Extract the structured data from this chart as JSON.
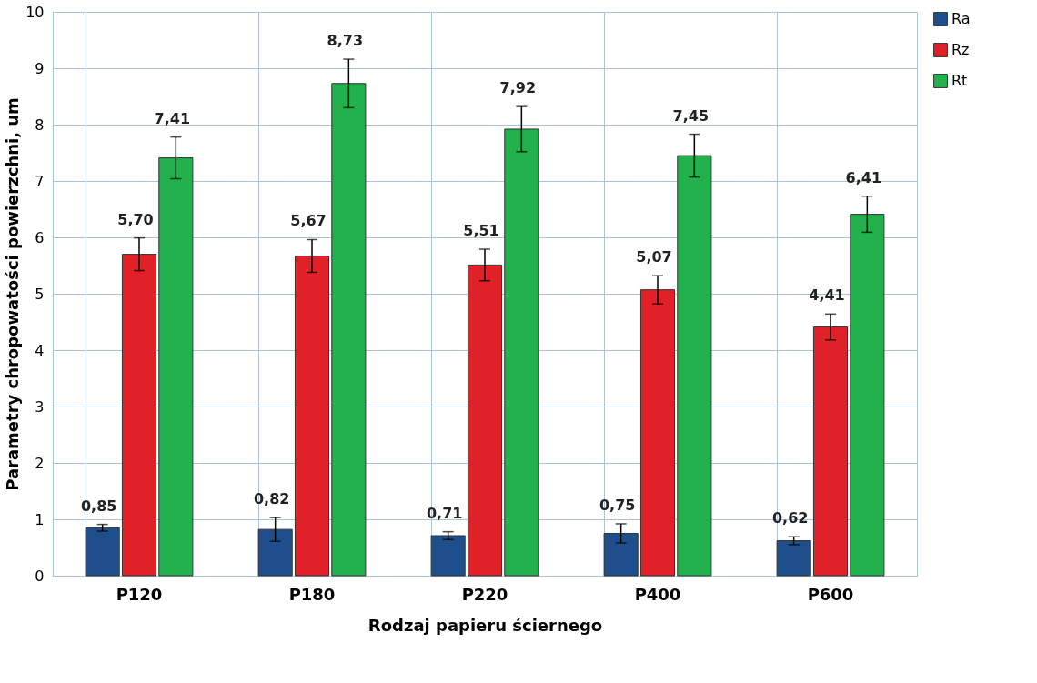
{
  "chart_data": {
    "type": "bar",
    "xlabel": "Rodzaj papieru ściernego",
    "ylabel": "Parametry chropowatości powierzchni, um",
    "categories": [
      "P120",
      "P180",
      "P220",
      "P400",
      "P600"
    ],
    "series": [
      {
        "name": "Ra",
        "color": "#1f4e8c",
        "values": [
          0.85,
          0.82,
          0.71,
          0.75,
          0.62
        ],
        "errors": [
          0.06,
          0.21,
          0.07,
          0.17,
          0.07
        ],
        "value_labels": [
          "0,85",
          "0,82",
          "0,71",
          "0,75",
          "0,62"
        ]
      },
      {
        "name": "Rz",
        "color": "#e02127",
        "values": [
          5.7,
          5.67,
          5.51,
          5.07,
          4.41
        ],
        "errors": [
          0.29,
          0.29,
          0.28,
          0.25,
          0.23
        ],
        "value_labels": [
          "5,70",
          "5,67",
          "5,51",
          "5,07",
          "4,41"
        ]
      },
      {
        "name": "Rt",
        "color": "#22b14c",
        "values": [
          7.41,
          8.73,
          7.92,
          7.45,
          6.41
        ],
        "errors": [
          0.37,
          0.43,
          0.4,
          0.38,
          0.32
        ],
        "value_labels": [
          "7,41",
          "8,73",
          "7,92",
          "7,45",
          "6,41"
        ]
      }
    ],
    "ylim": [
      0,
      10
    ],
    "yticks": [
      0,
      1,
      2,
      3,
      4,
      5,
      6,
      7,
      8,
      9,
      10
    ],
    "grid": true,
    "legend": "right"
  }
}
